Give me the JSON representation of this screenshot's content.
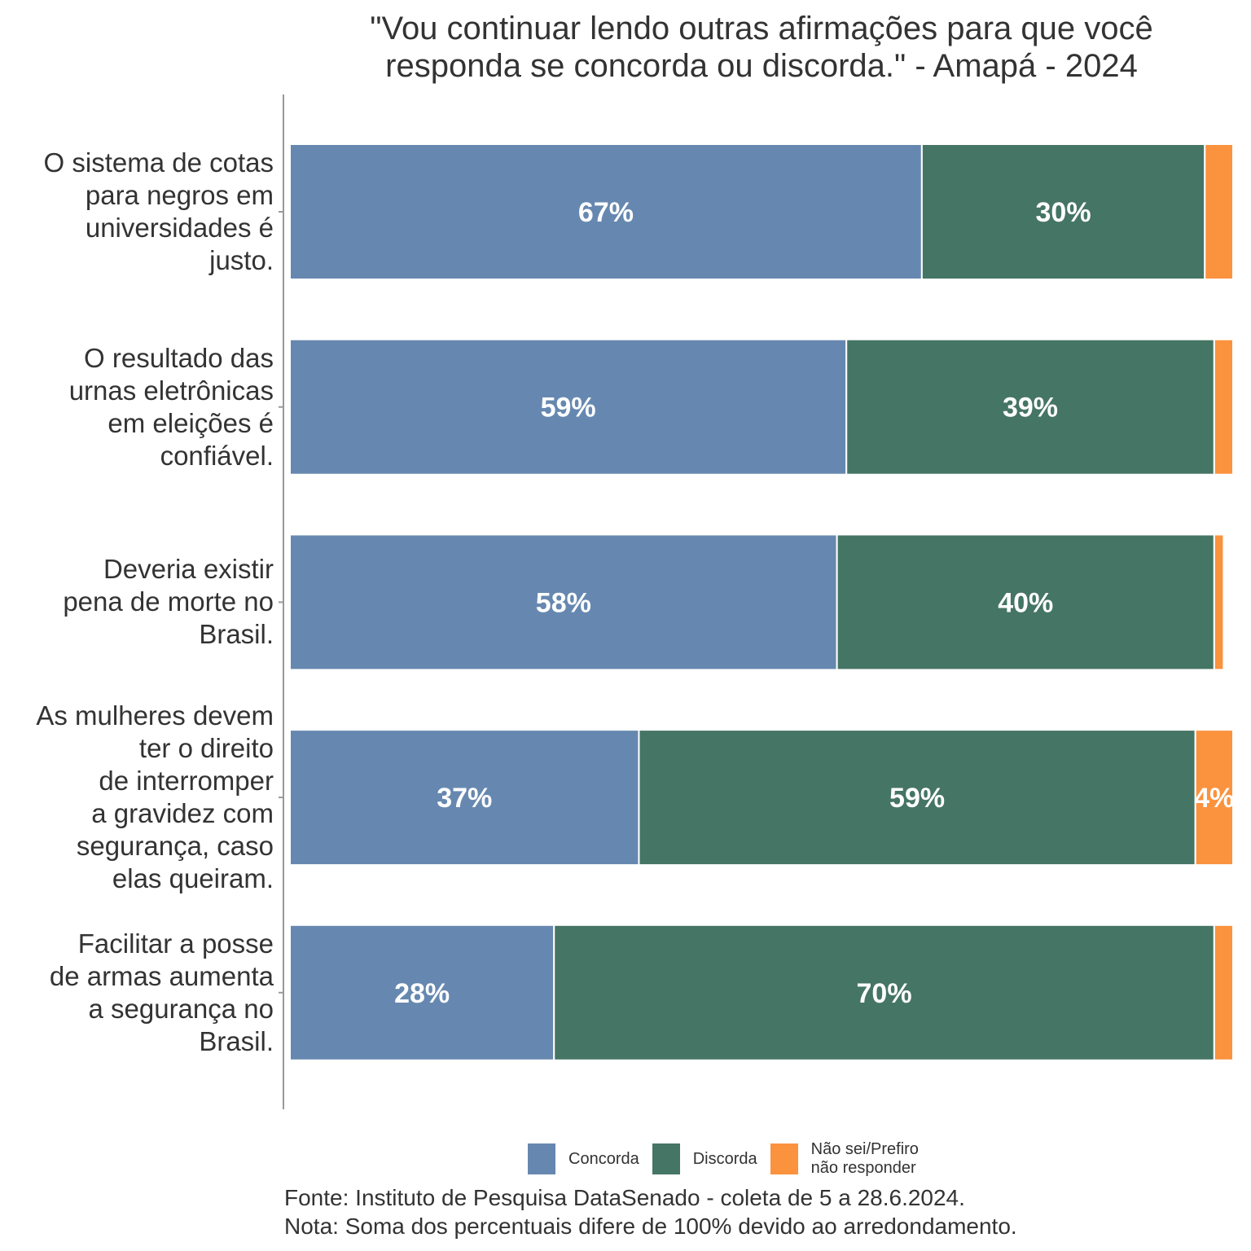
{
  "chart_data": {
    "type": "bar",
    "orientation": "horizontal",
    "stacked": true,
    "title_lines": [
      "\"Vou continuar lendo outras afirmações para que você",
      "responda se concorda ou discorda.\" - Amapá - 2024"
    ],
    "categories": [
      [
        "O sistema de cotas",
        "para negros em",
        "universidades é",
        "justo."
      ],
      [
        "O resultado das",
        "urnas eletrônicas",
        "em eleições é",
        "confiável."
      ],
      [
        "Deveria existir",
        "pena de morte no",
        "Brasil."
      ],
      [
        "As mulheres devem",
        "ter o direito",
        "de interromper",
        "a gravidez com",
        "segurança, caso",
        "elas queiram."
      ],
      [
        "Facilitar a posse",
        "de armas aumenta",
        "a segurança no",
        "Brasil."
      ]
    ],
    "series": [
      {
        "name": "Concorda",
        "color": "#6688b0",
        "values": [
          67,
          59,
          58,
          37,
          28
        ],
        "labels": [
          "67%",
          "59%",
          "58%",
          "37%",
          "28%"
        ]
      },
      {
        "name": "Discorda",
        "color": "#457564",
        "values": [
          30,
          39,
          40,
          59,
          70
        ],
        "labels": [
          "30%",
          "39%",
          "40%",
          "59%",
          "70%"
        ]
      },
      {
        "name": "Não sei/Prefiro não responder",
        "color": "#fb923e",
        "values": [
          3,
          2,
          1,
          4,
          2
        ],
        "labels": [
          "",
          "",
          "",
          "4%",
          ""
        ]
      }
    ],
    "xlim": [
      0,
      100
    ],
    "xlabel": "",
    "ylabel": "",
    "grid": false,
    "legend_position": "bottom",
    "legend": [
      {
        "label_lines": [
          "Concorda"
        ],
        "color": "#6688b0"
      },
      {
        "label_lines": [
          "Discorda"
        ],
        "color": "#457564"
      },
      {
        "label_lines": [
          "Não sei/Prefiro",
          "não responder"
        ],
        "color": "#fb923e"
      }
    ],
    "caption": [
      "Fonte: Instituto de Pesquisa DataSenado - coleta de 5 a 28.6.2024.",
      "Nota: Soma dos percentuais difere de 100% devido ao arredondamento."
    ]
  }
}
